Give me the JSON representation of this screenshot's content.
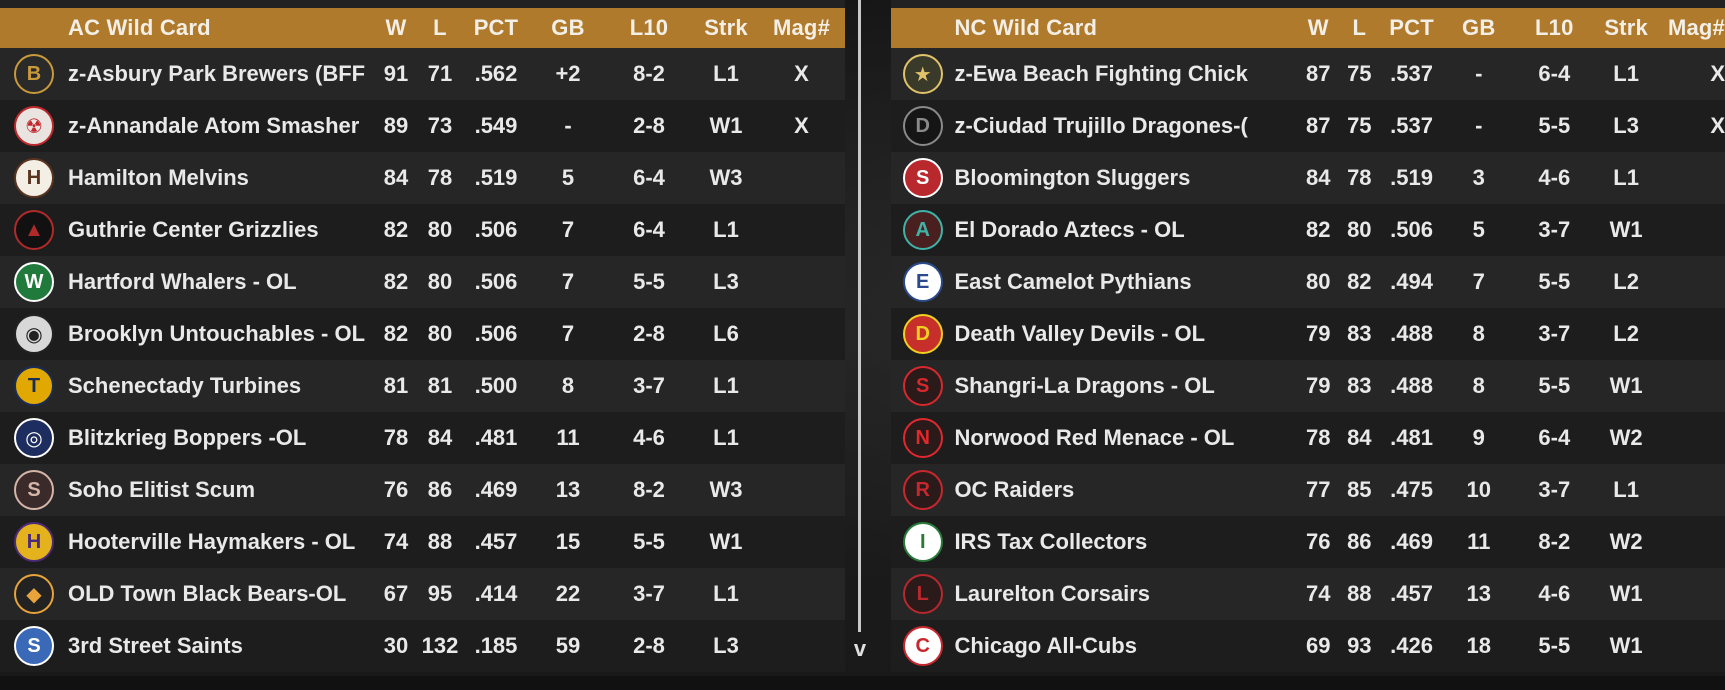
{
  "colors": {
    "header_bg": "#b07a2d",
    "row_odd": "#262626",
    "row_even": "#1d1d1d",
    "text": "#e9e9e9"
  },
  "columns": {
    "w": "W",
    "l": "L",
    "pct": "PCT",
    "gb": "GB",
    "l10": "L10",
    "strk": "Strk",
    "mag": "Mag#"
  },
  "ac": {
    "title": "AC  Wild Card",
    "teams": [
      {
        "logo": "brewers-logo",
        "name": "z-Asbury Park Brewers (BFF",
        "w": "91",
        "l": "71",
        "pct": ".562",
        "gb": "+2",
        "l10": "8-2",
        "strk": "L1",
        "mag": "X"
      },
      {
        "logo": "atom-smashers-logo",
        "name": "z-Annandale Atom Smasher",
        "w": "89",
        "l": "73",
        "pct": ".549",
        "gb": "-",
        "l10": "2-8",
        "strk": "W1",
        "mag": "X"
      },
      {
        "logo": "melvins-logo",
        "name": "Hamilton Melvins",
        "w": "84",
        "l": "78",
        "pct": ".519",
        "gb": "5",
        "l10": "6-4",
        "strk": "W3",
        "mag": ""
      },
      {
        "logo": "grizzlies-logo",
        "name": "Guthrie Center Grizzlies",
        "w": "82",
        "l": "80",
        "pct": ".506",
        "gb": "7",
        "l10": "6-4",
        "strk": "L1",
        "mag": ""
      },
      {
        "logo": "whalers-logo",
        "name": "Hartford Whalers - OL",
        "w": "82",
        "l": "80",
        "pct": ".506",
        "gb": "7",
        "l10": "5-5",
        "strk": "L3",
        "mag": ""
      },
      {
        "logo": "untouchables-logo",
        "name": "Brooklyn Untouchables - OL",
        "w": "82",
        "l": "80",
        "pct": ".506",
        "gb": "7",
        "l10": "2-8",
        "strk": "L6",
        "mag": ""
      },
      {
        "logo": "turbines-logo",
        "name": "Schenectady Turbines",
        "w": "81",
        "l": "81",
        "pct": ".500",
        "gb": "8",
        "l10": "3-7",
        "strk": "L1",
        "mag": ""
      },
      {
        "logo": "boppers-logo",
        "name": "Blitzkrieg Boppers -OL",
        "w": "78",
        "l": "84",
        "pct": ".481",
        "gb": "11",
        "l10": "4-6",
        "strk": "L1",
        "mag": ""
      },
      {
        "logo": "elitist-scum-logo",
        "name": "Soho Elitist Scum",
        "w": "76",
        "l": "86",
        "pct": ".469",
        "gb": "13",
        "l10": "8-2",
        "strk": "W3",
        "mag": ""
      },
      {
        "logo": "haymakers-logo",
        "name": "Hooterville Haymakers - OL",
        "w": "74",
        "l": "88",
        "pct": ".457",
        "gb": "15",
        "l10": "5-5",
        "strk": "W1",
        "mag": ""
      },
      {
        "logo": "black-bears-logo",
        "name": "OLD Town Black Bears-OL",
        "w": "67",
        "l": "95",
        "pct": ".414",
        "gb": "22",
        "l10": "3-7",
        "strk": "L1",
        "mag": ""
      },
      {
        "logo": "saints-logo",
        "name": "3rd Street Saints",
        "w": "30",
        "l": "132",
        "pct": ".185",
        "gb": "59",
        "l10": "2-8",
        "strk": "L3",
        "mag": ""
      }
    ]
  },
  "nc": {
    "title": "NC  Wild Card",
    "teams": [
      {
        "logo": "fighting-chickens-logo",
        "name": "z-Ewa Beach Fighting Chick",
        "w": "87",
        "l": "75",
        "pct": ".537",
        "gb": "-",
        "l10": "6-4",
        "strk": "L1",
        "mag": "X"
      },
      {
        "logo": "dragones-logo",
        "name": "z-Ciudad Trujillo Dragones-(",
        "w": "87",
        "l": "75",
        "pct": ".537",
        "gb": "-",
        "l10": "5-5",
        "strk": "L3",
        "mag": "X"
      },
      {
        "logo": "sluggers-logo",
        "name": "Bloomington Sluggers",
        "w": "84",
        "l": "78",
        "pct": ".519",
        "gb": "3",
        "l10": "4-6",
        "strk": "L1",
        "mag": ""
      },
      {
        "logo": "aztecs-logo",
        "name": "El Dorado Aztecs - OL",
        "w": "82",
        "l": "80",
        "pct": ".506",
        "gb": "5",
        "l10": "3-7",
        "strk": "W1",
        "mag": ""
      },
      {
        "logo": "pythians-logo",
        "name": "East Camelot Pythians",
        "w": "80",
        "l": "82",
        "pct": ".494",
        "gb": "7",
        "l10": "5-5",
        "strk": "L2",
        "mag": ""
      },
      {
        "logo": "devils-logo",
        "name": "Death Valley Devils - OL",
        "w": "79",
        "l": "83",
        "pct": ".488",
        "gb": "8",
        "l10": "3-7",
        "strk": "L2",
        "mag": ""
      },
      {
        "logo": "shangri-la-dragons-logo",
        "name": "Shangri-La Dragons - OL",
        "w": "79",
        "l": "83",
        "pct": ".488",
        "gb": "8",
        "l10": "5-5",
        "strk": "W1",
        "mag": ""
      },
      {
        "logo": "red-menace-logo",
        "name": "Norwood Red Menace - OL",
        "w": "78",
        "l": "84",
        "pct": ".481",
        "gb": "9",
        "l10": "6-4",
        "strk": "W2",
        "mag": ""
      },
      {
        "logo": "oc-raiders-logo",
        "name": "OC Raiders",
        "w": "77",
        "l": "85",
        "pct": ".475",
        "gb": "10",
        "l10": "3-7",
        "strk": "L1",
        "mag": ""
      },
      {
        "logo": "tax-collectors-logo",
        "name": "IRS Tax Collectors",
        "w": "76",
        "l": "86",
        "pct": ".469",
        "gb": "11",
        "l10": "8-2",
        "strk": "W2",
        "mag": ""
      },
      {
        "logo": "corsairs-logo",
        "name": "Laurelton Corsairs",
        "w": "74",
        "l": "88",
        "pct": ".457",
        "gb": "13",
        "l10": "4-6",
        "strk": "W1",
        "mag": ""
      },
      {
        "logo": "all-cubs-logo",
        "name": "Chicago All-Cubs",
        "w": "69",
        "l": "93",
        "pct": ".426",
        "gb": "18",
        "l10": "5-5",
        "strk": "W1",
        "mag": ""
      }
    ]
  },
  "scroll": {
    "arrow": "v"
  }
}
